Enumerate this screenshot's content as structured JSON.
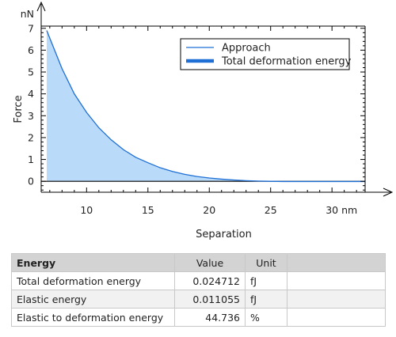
{
  "chart_data": {
    "type": "area",
    "xlabel": "Separation",
    "x_unit": "nm",
    "ylabel": "Force",
    "y_unit": "nN",
    "xlim": [
      6.3,
      32.7
    ],
    "ylim": [
      -0.5,
      7.1
    ],
    "x_ticks": [
      10,
      15,
      20,
      25,
      30
    ],
    "y_ticks": [
      0,
      1,
      2,
      3,
      4,
      5,
      6,
      7
    ],
    "legend_position": "top-right",
    "series": [
      {
        "name": "Approach",
        "color": "#1e6fd6",
        "x": [
          6.75,
          7.5,
          8,
          9,
          10,
          11,
          12,
          13,
          14,
          15,
          16,
          17,
          18,
          19,
          20,
          21,
          22,
          23,
          24,
          25,
          26,
          27,
          28,
          29,
          30,
          31,
          32,
          32.7
        ],
        "y": [
          6.9,
          5.85,
          5.15,
          4.0,
          3.15,
          2.45,
          1.9,
          1.45,
          1.1,
          0.85,
          0.62,
          0.45,
          0.32,
          0.22,
          0.15,
          0.1,
          0.06,
          0.03,
          0.01,
          0.0,
          -0.01,
          -0.01,
          -0.01,
          -0.01,
          -0.01,
          -0.01,
          -0.01,
          -0.01
        ]
      },
      {
        "name": "Total deformation energy",
        "color": "#b9daf8",
        "legend_color": "#1e6fd6",
        "fill_between": "Approach"
      }
    ]
  },
  "results_table": {
    "headers": {
      "name": "Energy",
      "value": "Value",
      "unit": "Unit"
    },
    "rows": [
      {
        "name": "Total deformation energy",
        "value": "0.024712",
        "unit": "fJ"
      },
      {
        "name": "Elastic energy",
        "value": "0.011055",
        "unit": "fJ"
      },
      {
        "name": "Elastic to deformation energy",
        "value": "44.736",
        "unit": "%"
      }
    ]
  }
}
